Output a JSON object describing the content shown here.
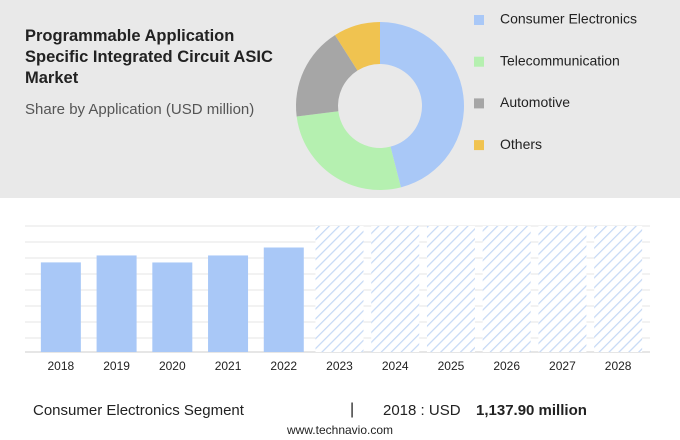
{
  "chart_data": [
    {
      "type": "pie",
      "title": "Programmable Application Specific Integrated Circuit ASIC Market",
      "subtitle": "Share by Application (USD million)",
      "categories": [
        "Consumer Electronics",
        "Telecommunication",
        "Automotive",
        "Others"
      ],
      "values": [
        46,
        27,
        18,
        9
      ],
      "colors": [
        "#a9c8f7",
        "#b5f0b0",
        "#a6a6a6",
        "#f0c350"
      ],
      "donut": true
    },
    {
      "type": "bar",
      "categories": [
        "2018",
        "2019",
        "2020",
        "2021",
        "2022",
        "2023",
        "2024",
        "2025",
        "2026",
        "2027",
        "2028"
      ],
      "values": [
        1137.9,
        1226,
        1137,
        1226,
        1327,
        null,
        null,
        null,
        null,
        null,
        null
      ],
      "color": "#a9c8f7",
      "ylim": [
        0,
        1600
      ],
      "highlight": {
        "segment": "Consumer Electronics Segment",
        "divider": "|",
        "label": "2018 : USD",
        "amount": "1,137.90 million"
      },
      "source": "www.technavio.com"
    }
  ]
}
